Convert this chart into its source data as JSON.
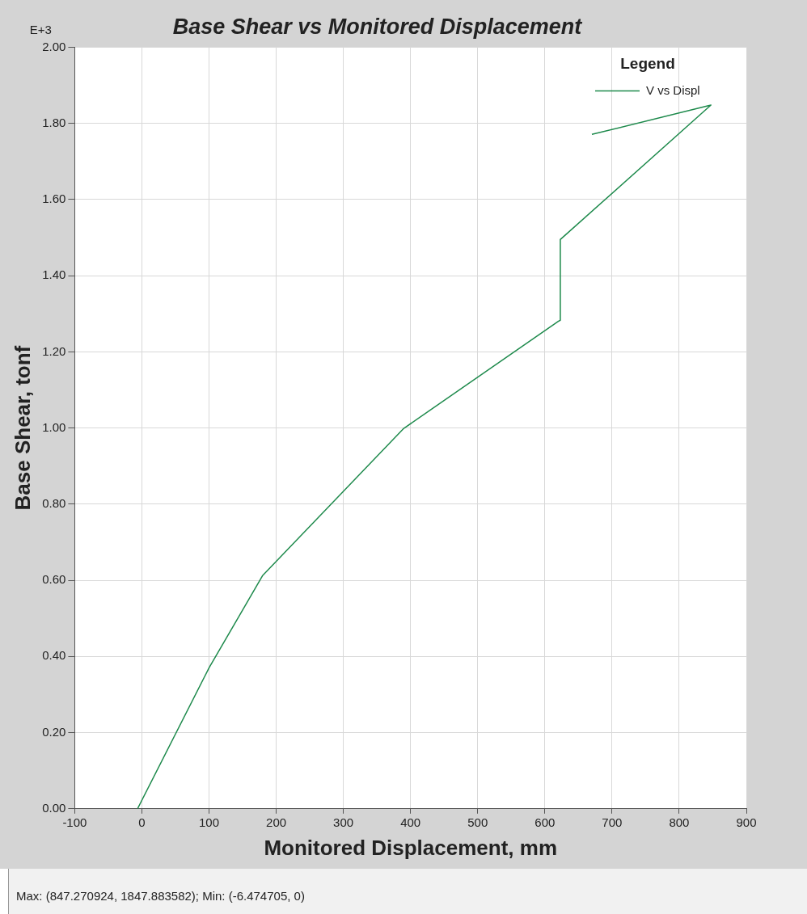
{
  "chart_data": {
    "type": "line",
    "title": "Base Shear vs Monitored Displacement",
    "xlabel": "Monitored Displacement, mm",
    "ylabel": "Base Shear, tonf",
    "legend_title": "Legend",
    "legend": "top right",
    "grid": true,
    "marker": "none",
    "line_style": "solid",
    "xlim": [
      -100,
      900
    ],
    "xticks": [
      -100,
      0,
      100,
      200,
      300,
      400,
      500,
      600,
      700,
      800,
      900
    ],
    "ylim": [
      0,
      2
    ],
    "yticks": [
      {
        "value": 0,
        "label": "0.00"
      },
      {
        "value": 0.2,
        "label": "0.20"
      },
      {
        "value": 0.4,
        "label": "0.40"
      },
      {
        "value": 0.6,
        "label": "0.60"
      },
      {
        "value": 0.8,
        "label": "0.80"
      },
      {
        "value": 1,
        "label": "1.00"
      },
      {
        "value": 1.2,
        "label": "1.20"
      },
      {
        "value": 1.4,
        "label": "1.40"
      },
      {
        "value": 1.6,
        "label": "1.60"
      },
      {
        "value": 1.8,
        "label": "1.80"
      },
      {
        "value": 2,
        "label": "2.00"
      }
    ],
    "series": [
      {
        "name": "V vs Displ",
        "color": "#1e8a4c",
        "x": [
          -6.47,
          100,
          180,
          390,
          620,
          623,
          623,
          847.27,
          670
        ],
        "values": [
          0,
          0.37,
          0.613,
          0.999,
          1.28,
          1.283,
          1.495,
          1.848,
          1.771
        ]
      }
    ],
    "annotations": [
      "E+3",
      "Max: (847.270924, 1847.883582);   Min: (-6.474705, 0)"
    ]
  }
}
